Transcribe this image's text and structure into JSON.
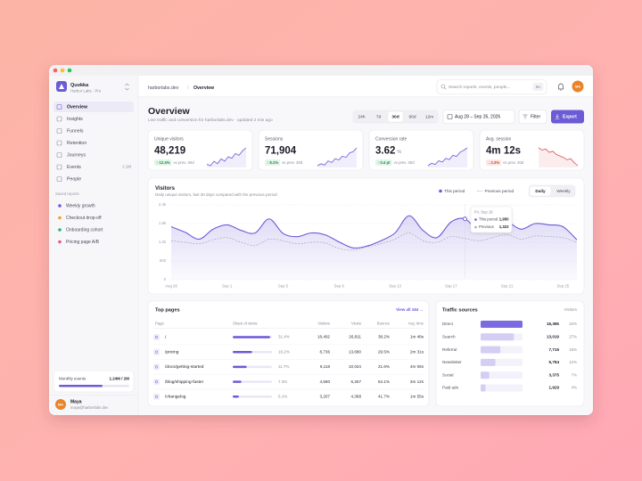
{
  "app": {
    "name": "Quokka",
    "workspace": "Harbor Labs · Pro"
  },
  "nav": [
    {
      "label": "Overview",
      "active": true
    },
    {
      "label": "Insights"
    },
    {
      "label": "Funnels"
    },
    {
      "label": "Retention"
    },
    {
      "label": "Journeys"
    },
    {
      "label": "Events",
      "badge": "2.1M"
    },
    {
      "label": "People"
    }
  ],
  "saved_reports": {
    "heading": "Saved reports",
    "items": [
      {
        "label": "Weekly growth",
        "color": "#6b5bd6"
      },
      {
        "label": "Checkout drop-off",
        "color": "#f0a030"
      },
      {
        "label": "Onboarding cohort",
        "color": "#2fb37a"
      },
      {
        "label": "Pricing page A/B",
        "color": "#e8578a"
      }
    ]
  },
  "usage": {
    "label": "Monthly events",
    "value_label": "1.24M / 2M",
    "used": 1.24,
    "limit": 2
  },
  "user": {
    "initials": "MA",
    "name": "Maya",
    "email": "maya@harborlabs.dev"
  },
  "topbar": {
    "breadcrumb": [
      "harborlabs.dev",
      "Overview"
    ],
    "separator": "/",
    "search_placeholder": "Search reports, events, people...",
    "shortcut": "⌘K",
    "avatar": "MA"
  },
  "header": {
    "title": "Overview",
    "subtitle": "Live traffic and conversion for harborlabs.dev · updated 2 min ago"
  },
  "toolbar": {
    "ranges": [
      "24h",
      "7d",
      "30d",
      "90d",
      "12m"
    ],
    "active_range": "30d",
    "date_range": "Aug 28 – Sep 26, 2026",
    "filter": "Filter",
    "export": "Export"
  },
  "kpis": [
    {
      "label": "Unique visitors",
      "value": "48,219",
      "delta": "↑ 12.4%",
      "direction": "up",
      "compare": "vs prev. 30d",
      "sparkline": [
        5,
        4.5,
        6,
        5.2,
        6.8,
        6,
        7.5,
        7,
        8.6,
        8,
        9.5,
        10.5
      ]
    },
    {
      "label": "Sessions",
      "value": "71,904",
      "delta": "↑ 8.1%",
      "direction": "up",
      "compare": "vs prev. 30d",
      "sparkline": [
        4,
        4.6,
        4.2,
        5.5,
        5,
        6.2,
        5.8,
        7,
        6.6,
        8,
        8.4,
        9.6
      ]
    },
    {
      "label": "Conversion rate",
      "value": "3.62",
      "unit": "%",
      "delta": "↑ 0.4 pt",
      "direction": "up",
      "compare": "vs prev. 30d",
      "sparkline": [
        3,
        3.8,
        3.4,
        4.6,
        4.2,
        5.4,
        5,
        6.4,
        6,
        7.4,
        8,
        8.8
      ]
    },
    {
      "label": "Avg. session",
      "value": "4m 12s",
      "delta": "↓ 2.3%",
      "direction": "down",
      "compare": "vs prev. 30d",
      "sparkline": [
        9.6,
        9,
        9.3,
        8.4,
        8.7,
        7.8,
        7.4,
        7,
        6.4,
        6.7,
        5.6,
        4.8
      ]
    }
  ],
  "chart_data": {
    "type": "line",
    "title": "Visitors",
    "subtitle": "Daily unique visitors, last 30 days compared with the previous period",
    "categories": [
      "Aug 28",
      null,
      null,
      null,
      "Sep 1",
      null,
      null,
      null,
      "Sep 5",
      null,
      null,
      null,
      "Sep 9",
      null,
      null,
      null,
      "Sep 13",
      null,
      null,
      null,
      "Sep 17",
      null,
      null,
      null,
      "Sep 21",
      null,
      null,
      null,
      "Sep 25",
      null
    ],
    "series": [
      {
        "name": "This period",
        "color": "#6b5bd6",
        "values": [
          1700,
          1520,
          1300,
          1620,
          1760,
          1580,
          1500,
          1950,
          1480,
          1380,
          1500,
          1440,
          1210,
          1020,
          1080,
          1250,
          1500,
          2050,
          1580,
          1350,
          1850,
          1950,
          1560,
          1720,
          1850,
          1620,
          1800,
          1760,
          1700,
          1280
        ]
      },
      {
        "name": "Previous period",
        "color": "#a9a9b8",
        "values": [
          1250,
          1200,
          1150,
          1280,
          1350,
          1200,
          1100,
          1300,
          1250,
          1150,
          1200,
          1180,
          1000,
          950,
          1050,
          1150,
          1300,
          1500,
          1250,
          1200,
          1380,
          1322,
          1250,
          1350,
          1450,
          1300,
          1400,
          1380,
          1350,
          1200
        ]
      }
    ],
    "ylim": [
      0,
      2400
    ],
    "yticks": [
      0,
      600,
      {
        "value": 1200,
        "label": "1.2k"
      },
      {
        "value": 1800,
        "label": "1.8k"
      },
      {
        "value": 2400,
        "label": "2.4k"
      }
    ],
    "grid": true,
    "toggle": [
      "Daily",
      "Weekly"
    ],
    "active_toggle": "Daily",
    "tooltip": {
      "index": 21,
      "title": "Fri, Sep 18",
      "rows": [
        {
          "name": "This period",
          "value": "1,950"
        },
        {
          "name": "Previous",
          "value": "1,322"
        }
      ]
    }
  },
  "top_pages": {
    "title": "Top pages",
    "view_all": "View all 184 →",
    "columns": [
      "Page",
      "Share of views",
      "Visitors",
      "Views",
      "Bounce",
      "Avg. time"
    ],
    "rows": [
      {
        "page": "/",
        "share": {
          "value": 31.4,
          "label": "31.4%"
        },
        "visitors": "18,402",
        "views": "26,811",
        "bounce": "38.2%",
        "avg_time": "1m 48s"
      },
      {
        "page": "/pricing",
        "share": {
          "value": 16.2,
          "label": "16.2%"
        },
        "visitors": "8,736",
        "views": "13,680",
        "bounce": "29.5%",
        "avg_time": "2m 31s"
      },
      {
        "page": "/docs/getting-started",
        "share": {
          "value": 11.7,
          "label": "11.7%"
        },
        "visitors": "6,118",
        "views": "10,024",
        "bounce": "21.6%",
        "avg_time": "4m 06s"
      },
      {
        "page": "/blog/shipping-faster",
        "share": {
          "value": 7.3,
          "label": "7.3%"
        },
        "visitors": "4,590",
        "views": "6,257",
        "bounce": "54.1%",
        "avg_time": "3m 12s"
      },
      {
        "page": "/changelog",
        "share": {
          "value": 5.1,
          "label": "5.1%"
        },
        "visitors": "3,207",
        "views": "4,368",
        "bounce": "41.7%",
        "avg_time": "1m 55s"
      }
    ]
  },
  "traffic_sources": {
    "title": "Traffic sources",
    "column": "Visitors",
    "rows": [
      {
        "source": "Direct",
        "visitors": {
          "value": 16395,
          "label": "16,395"
        },
        "share": "34%"
      },
      {
        "source": "Search",
        "visitors": {
          "value": 13019,
          "label": "13,019"
        },
        "share": "27%"
      },
      {
        "source": "Referral",
        "visitors": {
          "value": 7715,
          "label": "7,715"
        },
        "share": "16%"
      },
      {
        "source": "Newsletter",
        "visitors": {
          "value": 5784,
          "label": "5,784"
        },
        "share": "12%"
      },
      {
        "source": "Social",
        "visitors": {
          "value": 3375,
          "label": "3,375"
        },
        "share": "7%"
      },
      {
        "source": "Paid ads",
        "visitors": {
          "value": 1929,
          "label": "1,929"
        },
        "share": "4%"
      }
    ]
  }
}
